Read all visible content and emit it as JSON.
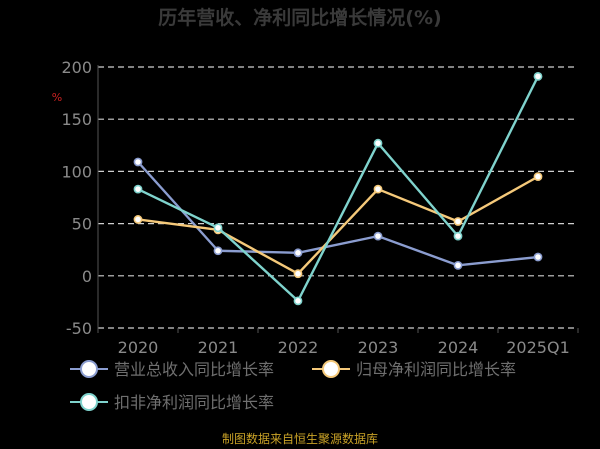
{
  "chart_data": {
    "type": "line",
    "title": "历年营收、净利同比增长情况(%)",
    "unit_label": "%",
    "categories": [
      "2020",
      "2021",
      "2022",
      "2023",
      "2024",
      "2025Q1"
    ],
    "ylim": [
      -50,
      200
    ],
    "yticks": [
      -50,
      0,
      50,
      100,
      150,
      200
    ],
    "grid": true,
    "legend_position": "bottom-left",
    "series": [
      {
        "name": "营业总收入同比增长率",
        "color": "#8b9dd0",
        "values": [
          109,
          24,
          22,
          38,
          10,
          18
        ]
      },
      {
        "name": "归母净利润同比增长率",
        "color": "#f5c97a",
        "values": [
          54,
          44,
          2,
          83,
          52,
          95
        ]
      },
      {
        "name": "扣非净利润同比增长率",
        "color": "#7fd3cd",
        "values": [
          83,
          46,
          -24,
          127,
          38,
          191
        ]
      }
    ]
  },
  "footer": {
    "source": "制图数据来自恒生聚源数据库"
  }
}
